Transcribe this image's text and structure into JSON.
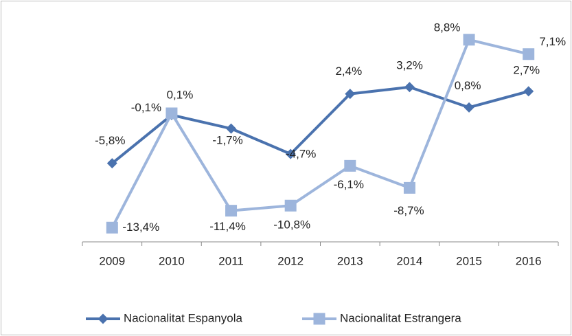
{
  "chart_data": {
    "type": "line",
    "categories": [
      "2009",
      "2010",
      "2011",
      "2012",
      "2013",
      "2014",
      "2015",
      "2016"
    ],
    "series": [
      {
        "name": "Nacionalitat Espanyola",
        "color": "#4a72ae",
        "marker": "diamond",
        "values": [
          -5.8,
          -0.1,
          -1.7,
          -4.7,
          2.4,
          3.2,
          0.8,
          2.7
        ],
        "value_labels": [
          "-5,8%",
          "-0,1%",
          "-1,7%",
          "-4,7%",
          "2,4%",
          "3,2%",
          "0,8%",
          "2,7%"
        ]
      },
      {
        "name": "Nacionalitat Estrangera",
        "color": "#9db5dc",
        "marker": "square",
        "values": [
          -13.4,
          0.1,
          -11.4,
          -10.8,
          -6.1,
          -8.7,
          8.8,
          7.1
        ],
        "value_labels": [
          "-13,4%",
          "0,1%",
          "-11,4%",
          "-10,8%",
          "-6,1%",
          "-8,7%",
          "8,8%",
          "7,1%"
        ]
      }
    ],
    "ylim": [
      -15,
      10
    ],
    "legend": "bottom"
  }
}
